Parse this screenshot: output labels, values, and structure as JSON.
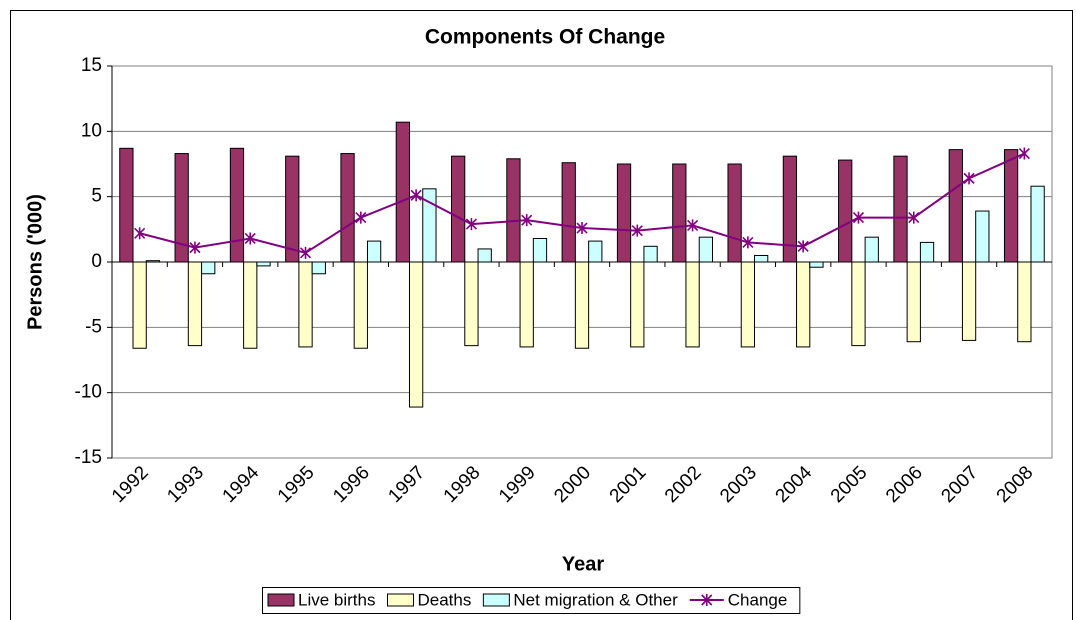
{
  "chart_data": {
    "type": "bar",
    "title": "Components Of Change",
    "x_label": "Year",
    "y_label": "Persons ('000)",
    "categories": [
      "1992",
      "1993",
      "1994",
      "1995",
      "1996",
      "1997",
      "1998",
      "1999",
      "2000",
      "2001",
      "2002",
      "2003",
      "2004",
      "2005",
      "2006",
      "2007",
      "2008"
    ],
    "series": [
      {
        "name": "Live births",
        "color": "#993366",
        "values": [
          8.7,
          8.3,
          8.7,
          8.1,
          8.3,
          10.7,
          8.1,
          7.9,
          7.6,
          7.5,
          7.5,
          7.5,
          8.1,
          7.8,
          8.1,
          8.6,
          8.6
        ]
      },
      {
        "name": "Deaths",
        "color": "#ffffcc",
        "values": [
          -6.6,
          -6.4,
          -6.6,
          -6.5,
          -6.6,
          -11.1,
          -6.4,
          -6.5,
          -6.6,
          -6.5,
          -6.5,
          -6.5,
          -6.5,
          -6.4,
          -6.1,
          -6.0,
          -6.1
        ]
      },
      {
        "name": "Net migration & Other",
        "color": "#ccffff",
        "values": [
          0.1,
          -0.9,
          -0.3,
          -0.9,
          1.6,
          5.6,
          1.0,
          1.8,
          1.6,
          1.2,
          1.9,
          0.5,
          -0.4,
          1.9,
          1.5,
          3.9,
          5.8
        ]
      },
      {
        "name": "Change",
        "color": "#800080",
        "type": "line",
        "values": [
          2.2,
          1.1,
          1.8,
          0.7,
          3.4,
          5.1,
          2.9,
          3.2,
          2.6,
          2.4,
          2.8,
          1.5,
          1.2,
          3.4,
          3.4,
          6.4,
          8.3
        ]
      }
    ],
    "ylim": [
      -15,
      15
    ],
    "yticks": [
      -15,
      -10,
      -5,
      0,
      5,
      10,
      15
    ],
    "grid": true,
    "legend": "bottom"
  }
}
